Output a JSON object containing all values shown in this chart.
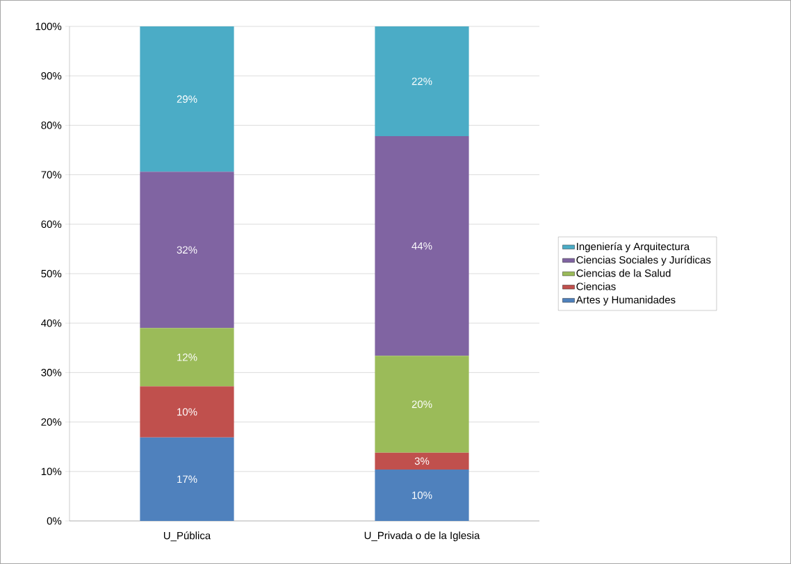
{
  "chart_data": {
    "type": "bar",
    "stacked": true,
    "categories": [
      "U_Pública",
      "U_Privada o de la Iglesia"
    ],
    "series": [
      {
        "name": "Artes y Humanidades",
        "color": "#4f81bd",
        "values": [
          16.9,
          10.4
        ],
        "value_labels": [
          "17%",
          "10%"
        ]
      },
      {
        "name": "Ciencias",
        "color": "#c0504d",
        "values": [
          10.3,
          3.4
        ],
        "value_labels": [
          "10%",
          "3%"
        ]
      },
      {
        "name": "Ciencias de la Salud",
        "color": "#9bbb59",
        "values": [
          11.8,
          19.6
        ],
        "value_labels": [
          "12%",
          "20%"
        ]
      },
      {
        "name": "Ciencias Sociales y Jurídicas",
        "color": "#8064a2",
        "values": [
          31.6,
          44.4
        ],
        "value_labels": [
          "32%",
          "44%"
        ]
      },
      {
        "name": "Ingeniería y Arquitectura",
        "color": "#4bacc6",
        "values": [
          29.4,
          22.2
        ],
        "value_labels": [
          "29%",
          "22%"
        ]
      }
    ],
    "ylim": [
      0,
      100
    ],
    "yticks": [
      {
        "value": 0,
        "label": "0%"
      },
      {
        "value": 10,
        "label": "10%"
      },
      {
        "value": 20,
        "label": "20%"
      },
      {
        "value": 30,
        "label": "30%"
      },
      {
        "value": 40,
        "label": "40%"
      },
      {
        "value": 50,
        "label": "50%"
      },
      {
        "value": 60,
        "label": "60%"
      },
      {
        "value": 70,
        "label": "70%"
      },
      {
        "value": 80,
        "label": "80%"
      },
      {
        "value": 90,
        "label": "90%"
      },
      {
        "value": 100,
        "label": "100%"
      }
    ],
    "grid": "y",
    "legend": "right"
  }
}
